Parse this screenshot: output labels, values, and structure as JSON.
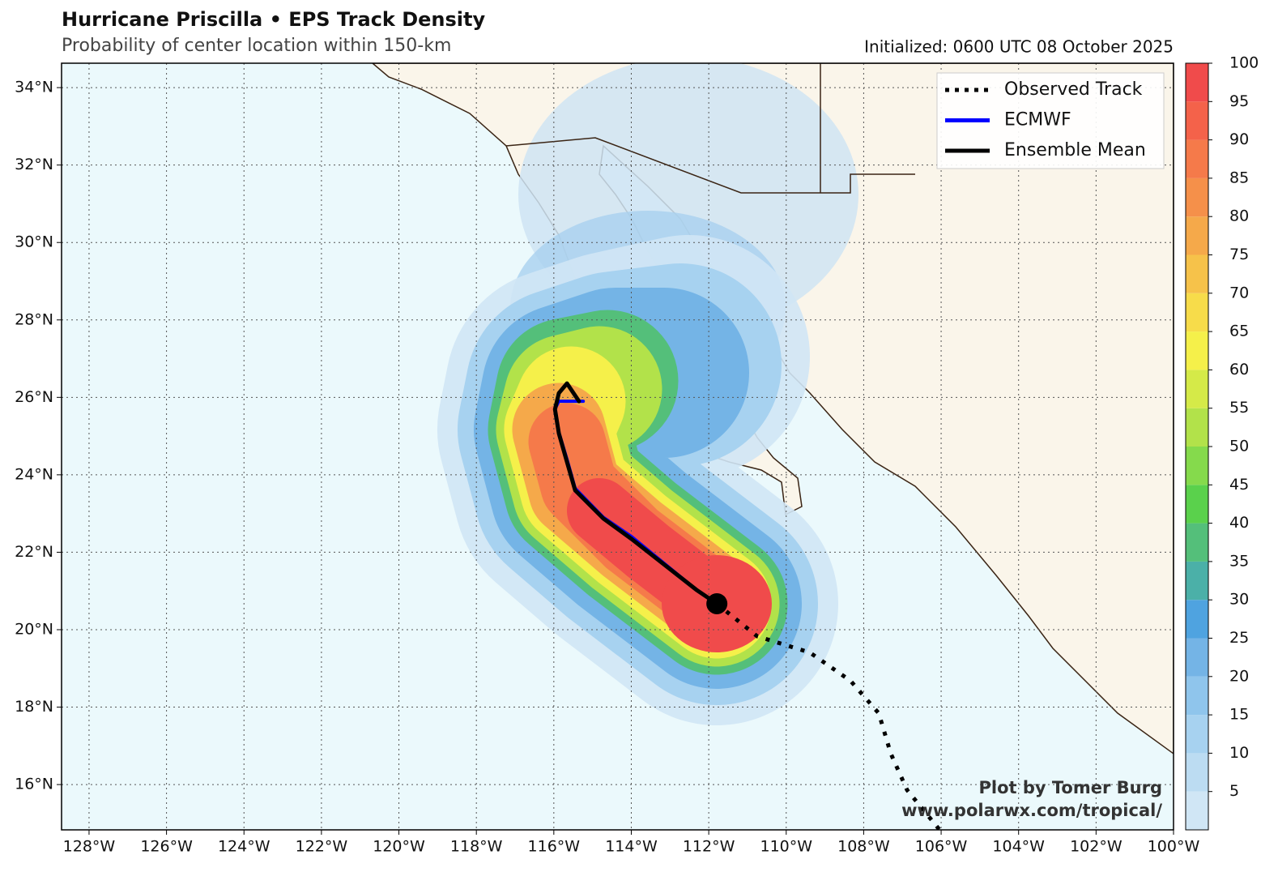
{
  "chart_data": {
    "type": "map",
    "title": "Hurricane Priscilla • EPS Track Density",
    "subtitle": "Probability of center location within 150-km",
    "initialized": "Initialized: 0600 UTC 08 October 2025",
    "credit": [
      "Plot by Tomer Burg",
      "www.polarwx.com/tropical/"
    ],
    "xlim": [
      -128.71,
      -100
    ],
    "ylim": [
      14.83,
      34.63
    ],
    "xticks": [
      {
        "value": -128,
        "label": "128°W"
      },
      {
        "value": -126,
        "label": "126°W"
      },
      {
        "value": -124,
        "label": "124°W"
      },
      {
        "value": -122,
        "label": "122°W"
      },
      {
        "value": -120,
        "label": "120°W"
      },
      {
        "value": -118,
        "label": "118°W"
      },
      {
        "value": -116,
        "label": "116°W"
      },
      {
        "value": -114,
        "label": "114°W"
      },
      {
        "value": -112,
        "label": "112°W"
      },
      {
        "value": -110,
        "label": "110°W"
      },
      {
        "value": -108,
        "label": "108°W"
      },
      {
        "value": -106,
        "label": "106°W"
      },
      {
        "value": -104,
        "label": "104°W"
      },
      {
        "value": -102,
        "label": "102°W"
      },
      {
        "value": -100,
        "label": "100°W"
      }
    ],
    "yticks": [
      {
        "value": 16,
        "label": "16°N"
      },
      {
        "value": 18,
        "label": "18°N"
      },
      {
        "value": 20,
        "label": "20°N"
      },
      {
        "value": 22,
        "label": "22°N"
      },
      {
        "value": 24,
        "label": "24°N"
      },
      {
        "value": 26,
        "label": "26°N"
      },
      {
        "value": 28,
        "label": "28°N"
      },
      {
        "value": 30,
        "label": "30°N"
      },
      {
        "value": 32,
        "label": "32°N"
      },
      {
        "value": 34,
        "label": "34°N"
      }
    ],
    "grid": true,
    "legend": "upper right",
    "series": [
      {
        "name": "Observed Track",
        "color": "#000000",
        "style": "dotted",
        "lon": [
          -111.79,
          -110.75,
          -109.39,
          -108.34,
          -107.61,
          -107.3,
          -106.88,
          -106.04
        ],
        "lat": [
          20.67,
          19.83,
          19.41,
          18.68,
          17.84,
          16.8,
          15.86,
          14.83
        ]
      },
      {
        "name": "ECMWF",
        "color": "#0000ff",
        "style": "solid",
        "lon": [
          -111.79,
          -112.32,
          -113.99,
          -114.72,
          -115.45,
          -115.66,
          -115.87,
          -115.97,
          -115.87,
          -115.24
        ],
        "lat": [
          20.67,
          21.03,
          22.4,
          22.9,
          23.65,
          24.4,
          25.1,
          25.7,
          25.9,
          25.9
        ]
      },
      {
        "name": "Ensemble Mean",
        "color": "#000000",
        "style": "solid",
        "lon": [
          -111.79,
          -112.32,
          -113.99,
          -114.72,
          -115.45,
          -115.66,
          -115.87,
          -115.97,
          -115.87,
          -115.66,
          -115.35
        ],
        "lat": [
          20.67,
          21.03,
          22.34,
          22.87,
          23.6,
          24.33,
          25.07,
          25.69,
          26.11,
          26.36,
          25.9
        ]
      }
    ],
    "colorbar": {
      "lim": [
        0,
        100
      ],
      "ticks": [
        5,
        10,
        15,
        20,
        25,
        30,
        35,
        40,
        45,
        50,
        55,
        60,
        65,
        70,
        75,
        80,
        85,
        90,
        95,
        100
      ],
      "colors": [
        "#d0e6f5",
        "#bcdcf2",
        "#a7d2f0",
        "#8fc5ec",
        "#74b4e6",
        "#4fa3e0",
        "#4bb0a8",
        "#54bf7a",
        "#5ad14c",
        "#85da4c",
        "#b2e24a",
        "#d5ea48",
        "#f5f04a",
        "#f7dc4a",
        "#f6c24a",
        "#f5a94a",
        "#f5904a",
        "#f57a4a",
        "#f4624a",
        "#f04b4b"
      ]
    }
  }
}
